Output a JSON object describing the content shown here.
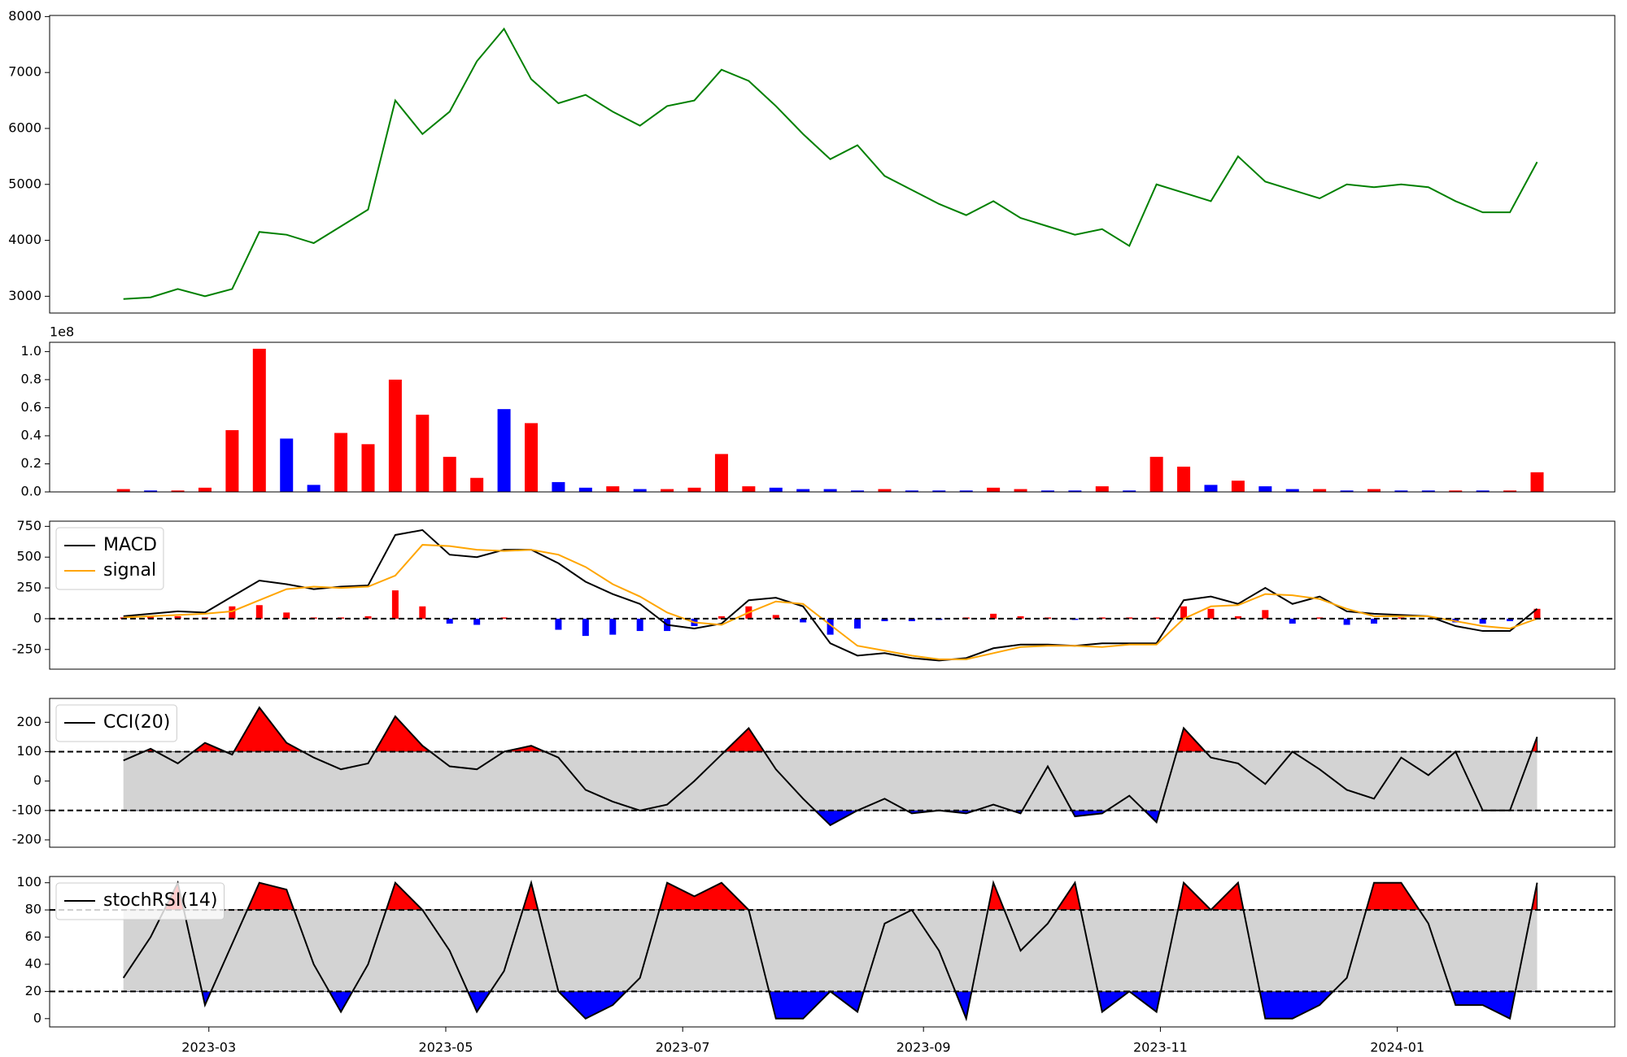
{
  "chart_data": [
    {
      "type": "line",
      "color": "green",
      "x": [
        "2023-02-07",
        "2023-02-14",
        "2023-02-21",
        "2023-02-28",
        "2023-03-07",
        "2023-03-14",
        "2023-03-21",
        "2023-03-28",
        "2023-04-04",
        "2023-04-11",
        "2023-04-18",
        "2023-04-25",
        "2023-05-02",
        "2023-05-09",
        "2023-05-16",
        "2023-05-23",
        "2023-05-30",
        "2023-06-06",
        "2023-06-13",
        "2023-06-20",
        "2023-06-27",
        "2023-07-04",
        "2023-07-11",
        "2023-07-18",
        "2023-07-25",
        "2023-08-01",
        "2023-08-08",
        "2023-08-15",
        "2023-08-22",
        "2023-08-29",
        "2023-09-05",
        "2023-09-12",
        "2023-09-19",
        "2023-09-26",
        "2023-10-03",
        "2023-10-10",
        "2023-10-17",
        "2023-10-24",
        "2023-10-31",
        "2023-11-07",
        "2023-11-14",
        "2023-11-21",
        "2023-11-28",
        "2023-12-05",
        "2023-12-12",
        "2023-12-19",
        "2023-12-26",
        "2024-01-02",
        "2024-01-09",
        "2024-01-16",
        "2024-01-23",
        "2024-01-30",
        "2024-02-06"
      ],
      "values": [
        2950,
        2980,
        3130,
        3000,
        3130,
        4150,
        4100,
        3950,
        4250,
        4550,
        6500,
        5900,
        6300,
        7200,
        7780,
        6880,
        6450,
        6600,
        6300,
        6050,
        6400,
        6500,
        7050,
        6850,
        6400,
        5900,
        5450,
        5700,
        5150,
        4900,
        4650,
        4450,
        4700,
        4400,
        4250,
        4100,
        4200,
        3900,
        5000,
        4850,
        4700,
        5500,
        5050,
        4900,
        4750,
        5000,
        4950,
        5000,
        4950,
        4700,
        4500,
        4500,
        5400
      ],
      "ylim": [
        2700,
        8020
      ],
      "yticks": [
        3000,
        4000,
        5000,
        6000,
        7000,
        8000
      ]
    },
    {
      "type": "bar",
      "y_offset_label": "1e8",
      "x": [
        "2023-02-07",
        "2023-02-14",
        "2023-02-21",
        "2023-02-28",
        "2023-03-07",
        "2023-03-14",
        "2023-03-21",
        "2023-03-28",
        "2023-04-04",
        "2023-04-11",
        "2023-04-18",
        "2023-04-25",
        "2023-05-02",
        "2023-05-09",
        "2023-05-16",
        "2023-05-23",
        "2023-05-30",
        "2023-06-06",
        "2023-06-13",
        "2023-06-20",
        "2023-06-27",
        "2023-07-04",
        "2023-07-11",
        "2023-07-18",
        "2023-07-25",
        "2023-08-01",
        "2023-08-08",
        "2023-08-15",
        "2023-08-22",
        "2023-08-29",
        "2023-09-05",
        "2023-09-12",
        "2023-09-19",
        "2023-09-26",
        "2023-10-03",
        "2023-10-10",
        "2023-10-17",
        "2023-10-24",
        "2023-10-31",
        "2023-11-07",
        "2023-11-14",
        "2023-11-21",
        "2023-11-28",
        "2023-12-05",
        "2023-12-12",
        "2023-12-19",
        "2023-12-26",
        "2024-01-02",
        "2024-01-09",
        "2024-01-16",
        "2024-01-23",
        "2024-01-30",
        "2024-02-06"
      ],
      "values": [
        0.02,
        0.01,
        0.01,
        0.03,
        0.44,
        1.02,
        0.38,
        0.05,
        0.42,
        0.34,
        0.8,
        0.55,
        0.25,
        0.1,
        0.59,
        0.49,
        0.07,
        0.03,
        0.04,
        0.02,
        0.02,
        0.03,
        0.27,
        0.04,
        0.03,
        0.02,
        0.02,
        0.01,
        0.02,
        0.01,
        0.01,
        0.01,
        0.03,
        0.02,
        0.01,
        0.01,
        0.04,
        0.01,
        0.25,
        0.18,
        0.05,
        0.08,
        0.04,
        0.02,
        0.02,
        0.01,
        0.02,
        0.01,
        0.01,
        0.01,
        0.01,
        0.01,
        0.14
      ],
      "colors": [
        "red",
        "blue",
        "red",
        "red",
        "red",
        "red",
        "blue",
        "blue",
        "red",
        "red",
        "red",
        "red",
        "red",
        "red",
        "blue",
        "red",
        "blue",
        "blue",
        "red",
        "blue",
        "red",
        "red",
        "red",
        "red",
        "blue",
        "blue",
        "blue",
        "blue",
        "red",
        "blue",
        "blue",
        "blue",
        "red",
        "red",
        "blue",
        "blue",
        "red",
        "blue",
        "red",
        "red",
        "blue",
        "red",
        "blue",
        "blue",
        "red",
        "blue",
        "red",
        "blue",
        "blue",
        "red",
        "blue",
        "red",
        "red"
      ],
      "ylim": [
        0,
        1.066
      ],
      "yticks": [
        {
          "value": 0,
          "label": "0.0"
        },
        {
          "value": 0.2,
          "label": "0.2"
        },
        {
          "value": 0.4,
          "label": "0.4"
        },
        {
          "value": 0.6,
          "label": "0.6"
        },
        {
          "value": 0.8,
          "label": "0.8"
        },
        {
          "value": 1,
          "label": "1.0"
        }
      ]
    },
    {
      "type": "line",
      "legend": "upper left",
      "hlines": [
        0
      ],
      "pos_color": "red",
      "neg_color": "blue",
      "x": [
        "2023-02-07",
        "2023-02-14",
        "2023-02-21",
        "2023-02-28",
        "2023-03-07",
        "2023-03-14",
        "2023-03-21",
        "2023-03-28",
        "2023-04-04",
        "2023-04-11",
        "2023-04-18",
        "2023-04-25",
        "2023-05-02",
        "2023-05-09",
        "2023-05-16",
        "2023-05-23",
        "2023-05-30",
        "2023-06-06",
        "2023-06-13",
        "2023-06-20",
        "2023-06-27",
        "2023-07-04",
        "2023-07-11",
        "2023-07-18",
        "2023-07-25",
        "2023-08-01",
        "2023-08-08",
        "2023-08-15",
        "2023-08-22",
        "2023-08-29",
        "2023-09-05",
        "2023-09-12",
        "2023-09-19",
        "2023-09-26",
        "2023-10-03",
        "2023-10-10",
        "2023-10-17",
        "2023-10-24",
        "2023-10-31",
        "2023-11-07",
        "2023-11-14",
        "2023-11-21",
        "2023-11-28",
        "2023-12-05",
        "2023-12-12",
        "2023-12-19",
        "2023-12-26",
        "2024-01-02",
        "2024-01-09",
        "2024-01-16",
        "2024-01-23",
        "2024-01-30",
        "2024-02-06"
      ],
      "series": [
        {
          "style": "bar",
          "values": [
            10,
            15,
            20,
            10,
            100,
            110,
            50,
            10,
            10,
            20,
            230,
            100,
            -40,
            -50,
            10,
            0,
            -90,
            -140,
            -130,
            -100,
            -100,
            -60,
            20,
            100,
            30,
            -30,
            -130,
            -80,
            -20,
            -20,
            -10,
            10,
            40,
            20,
            10,
            -10,
            10,
            10,
            10,
            100,
            80,
            20,
            70,
            -40,
            10,
            -50,
            -40,
            10,
            0,
            -30,
            -40,
            -20,
            80
          ]
        },
        {
          "name": "MACD",
          "color": "black",
          "values": [
            20,
            40,
            60,
            50,
            180,
            310,
            280,
            240,
            260,
            270,
            680,
            720,
            520,
            500,
            560,
            560,
            450,
            300,
            200,
            120,
            -50,
            -80,
            -40,
            150,
            170,
            100,
            -200,
            -300,
            -280,
            -320,
            -340,
            -320,
            -240,
            -210,
            -210,
            -220,
            -200,
            -200,
            -200,
            150,
            180,
            120,
            250,
            120,
            180,
            60,
            40,
            30,
            20,
            -60,
            -100,
            -100,
            80
          ]
        },
        {
          "name": "signal",
          "color": "orange",
          "values": [
            10,
            20,
            30,
            40,
            60,
            150,
            240,
            260,
            250,
            260,
            350,
            600,
            590,
            560,
            550,
            560,
            520,
            420,
            280,
            180,
            50,
            -30,
            -50,
            50,
            140,
            120,
            -50,
            -220,
            -260,
            -300,
            -330,
            -330,
            -280,
            -230,
            -220,
            -220,
            -230,
            -210,
            -210,
            0,
            100,
            110,
            200,
            190,
            160,
            80,
            20,
            20,
            20,
            -20,
            -60,
            -80,
            0
          ]
        }
      ],
      "ylim": [
        -410,
        792
      ],
      "yticks": [
        -250,
        0,
        250,
        500,
        750
      ]
    },
    {
      "type": "line",
      "legend": "upper left",
      "bands": [
        -100,
        100
      ],
      "band_color": "lightgray",
      "above_color": "red",
      "below_color": "blue",
      "x": [
        "2023-02-07",
        "2023-02-14",
        "2023-02-21",
        "2023-02-28",
        "2023-03-07",
        "2023-03-14",
        "2023-03-21",
        "2023-03-28",
        "2023-04-04",
        "2023-04-11",
        "2023-04-18",
        "2023-04-25",
        "2023-05-02",
        "2023-05-09",
        "2023-05-16",
        "2023-05-23",
        "2023-05-30",
        "2023-06-06",
        "2023-06-13",
        "2023-06-20",
        "2023-06-27",
        "2023-07-04",
        "2023-07-11",
        "2023-07-18",
        "2023-07-25",
        "2023-08-01",
        "2023-08-08",
        "2023-08-15",
        "2023-08-22",
        "2023-08-29",
        "2023-09-05",
        "2023-09-12",
        "2023-09-19",
        "2023-09-26",
        "2023-10-03",
        "2023-10-10",
        "2023-10-17",
        "2023-10-24",
        "2023-10-31",
        "2023-11-07",
        "2023-11-14",
        "2023-11-21",
        "2023-11-28",
        "2023-12-05",
        "2023-12-12",
        "2023-12-19",
        "2023-12-26",
        "2024-01-02",
        "2024-01-09",
        "2024-01-16",
        "2024-01-23",
        "2024-01-30",
        "2024-02-06"
      ],
      "series": [
        {
          "name": "CCI(20)",
          "color": "black",
          "values": [
            70,
            110,
            60,
            130,
            90,
            250,
            130,
            80,
            40,
            60,
            220,
            120,
            50,
            40,
            100,
            120,
            80,
            -30,
            -70,
            -100,
            -80,
            0,
            90,
            180,
            40,
            -60,
            -150,
            -100,
            -60,
            -110,
            -100,
            -110,
            -80,
            -110,
            50,
            -120,
            -110,
            -50,
            -140,
            180,
            80,
            60,
            -10,
            100,
            40,
            -30,
            -60,
            80,
            20,
            100,
            -100,
            -100,
            150
          ]
        }
      ],
      "ylim": [
        -225,
        281
      ],
      "yticks": [
        -200,
        -100,
        0,
        100,
        200
      ]
    },
    {
      "type": "line",
      "legend": "upper left",
      "bands": [
        20,
        80
      ],
      "band_color": "lightgray",
      "above_color": "red",
      "below_color": "blue",
      "x": [
        "2023-02-07",
        "2023-02-14",
        "2023-02-21",
        "2023-02-28",
        "2023-03-07",
        "2023-03-14",
        "2023-03-21",
        "2023-03-28",
        "2023-04-04",
        "2023-04-11",
        "2023-04-18",
        "2023-04-25",
        "2023-05-02",
        "2023-05-09",
        "2023-05-16",
        "2023-05-23",
        "2023-05-30",
        "2023-06-06",
        "2023-06-13",
        "2023-06-20",
        "2023-06-27",
        "2023-07-04",
        "2023-07-11",
        "2023-07-18",
        "2023-07-25",
        "2023-08-01",
        "2023-08-08",
        "2023-08-15",
        "2023-08-22",
        "2023-08-29",
        "2023-09-05",
        "2023-09-12",
        "2023-09-19",
        "2023-09-26",
        "2023-10-03",
        "2023-10-10",
        "2023-10-17",
        "2023-10-24",
        "2023-10-31",
        "2023-11-07",
        "2023-11-14",
        "2023-11-21",
        "2023-11-28",
        "2023-12-05",
        "2023-12-12",
        "2023-12-19",
        "2023-12-26",
        "2024-01-02",
        "2024-01-09",
        "2024-01-16",
        "2024-01-23",
        "2024-01-30",
        "2024-02-06"
      ],
      "series": [
        {
          "name": "stochRSI(14)",
          "color": "black",
          "values": [
            30,
            60,
            100,
            10,
            55,
            100,
            95,
            40,
            5,
            40,
            100,
            80,
            50,
            5,
            35,
            100,
            20,
            0,
            10,
            30,
            100,
            90,
            100,
            80,
            0,
            0,
            20,
            5,
            70,
            80,
            50,
            0,
            100,
            50,
            70,
            100,
            5,
            20,
            5,
            100,
            80,
            100,
            0,
            0,
            10,
            30,
            100,
            100,
            70,
            10,
            10,
            0,
            100
          ]
        }
      ],
      "ylim": [
        -6.1,
        104.6
      ],
      "yticks": [
        0,
        20,
        40,
        60,
        80,
        100
      ],
      "xlim": [
        "2023-01-19",
        "2024-02-26"
      ],
      "xticks": [
        {
          "value": "2023-03-01",
          "label": "2023-03"
        },
        {
          "value": "2023-05-01",
          "label": "2023-05"
        },
        {
          "value": "2023-07-01",
          "label": "2023-07"
        },
        {
          "value": "2023-09-01",
          "label": "2023-09"
        },
        {
          "value": "2023-11-01",
          "label": "2023-11"
        },
        {
          "value": "2024-01-01",
          "label": "2024-01"
        }
      ]
    }
  ]
}
